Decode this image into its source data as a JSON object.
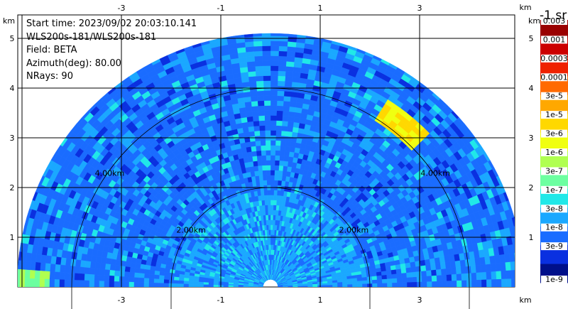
{
  "info": {
    "start_time": "Start time: 2023/09/02 20:03:10.141",
    "instrument": "WLS200s-181/WLS200s-181",
    "field": "Field: BETA",
    "azimuth": "Azimuth(deg): 80.00",
    "nrays": "NRays: 90"
  },
  "chart_data": {
    "type": "heatmap",
    "projection": "RHI half-disc (range vs elevation)",
    "axis_unit": "km",
    "x_ticks": [
      "-3",
      "-1",
      "1",
      "3"
    ],
    "y_ticks": [
      "1",
      "2",
      "3",
      "4",
      "5"
    ],
    "xlim": [
      -5.5,
      5.5
    ],
    "ylim": [
      0,
      6
    ],
    "max_range_km": 5.1,
    "range_rings": [
      {
        "range_km": 2,
        "label": "2.00km"
      },
      {
        "range_km": 4,
        "label": "4.00km"
      }
    ],
    "grid": true,
    "colorbar": {
      "title": "-1 sr",
      "levels": [
        "0.003",
        "0.001",
        "0.0003",
        "0.0001",
        "3e-5",
        "1e-5",
        "3e-6",
        "1e-6",
        "3e-7",
        "1e-7",
        "3e-8",
        "1e-8",
        "3e-9",
        "1e-9"
      ],
      "colors": [
        "#9a0000",
        "#cc0000",
        "#ef2200",
        "#ff6a00",
        "#ffa800",
        "#ffd800",
        "#f0ff10",
        "#b0ff50",
        "#6cffa0",
        "#20e8e8",
        "#1aa8ff",
        "#1a6cff",
        "#0a30e0",
        "#00108a"
      ]
    },
    "dominant_values": "mostly 3e-8 to 1e-7 across the scan, higher near the ground and in a thin layer near range 4.1 km elevation ~50 deg",
    "features": [
      {
        "range_km": 4.1,
        "elevation_deg": 51,
        "value": "3e-6 to 1e-5"
      },
      {
        "range_km": 5.2,
        "elevation_deg": 170,
        "value": "1e-6"
      }
    ]
  }
}
